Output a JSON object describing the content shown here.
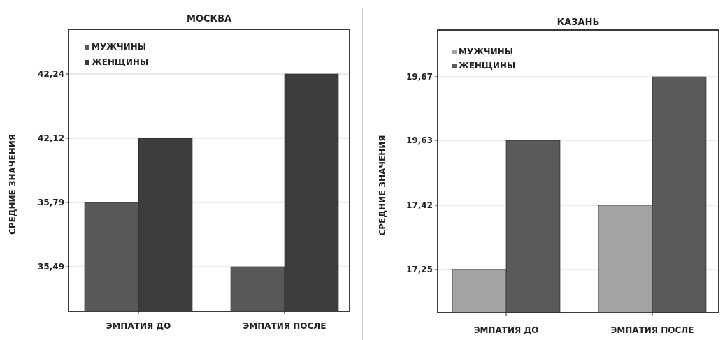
{
  "chart_data": [
    {
      "type": "bar",
      "title": "МОСКВА",
      "ylabel": "СРЕДНИЕ ЗНАЧЕНИЯ",
      "xlabel": "",
      "categories": [
        "ЭМПАТИЯ ДО",
        "ЭМПАТИЯ ПОСЛЕ"
      ],
      "yticks": [
        "42,24",
        "42,12",
        "35,79",
        "35,49"
      ],
      "y_scale": "categorical-ticks (unevenly valued labels at even spacing)",
      "series": [
        {
          "name": "МУЖЧИНЫ",
          "color": "#585858",
          "values": [
            "35,79",
            "35,49"
          ]
        },
        {
          "name": "ЖЕНЩИНЫ",
          "color": "#3c3c3c",
          "values": [
            "42,12",
            "42,24"
          ]
        }
      ],
      "legend": "top-left",
      "grid": true
    },
    {
      "type": "bar",
      "title": "КАЗАНЬ",
      "ylabel": "СРЕДНИЕ ЗНАЧЕНИЯ",
      "xlabel": "",
      "categories": [
        "ЭМПАТИЯ ДО",
        "ЭМПАТИЯ ПОСЛЕ"
      ],
      "yticks": [
        "19,67",
        "19,63",
        "17,42",
        "17,25"
      ],
      "y_scale": "categorical-ticks (unevenly valued labels at even spacing)",
      "series": [
        {
          "name": "МУЖЧИНЫ",
          "color": "#a3a3a3",
          "values": [
            "17,25",
            "17,42"
          ]
        },
        {
          "name": "ЖЕНЩИНЫ",
          "color": "#5a5a5a",
          "values": [
            "19,63",
            "19,67"
          ]
        }
      ],
      "legend": "top-left",
      "grid": true
    }
  ]
}
